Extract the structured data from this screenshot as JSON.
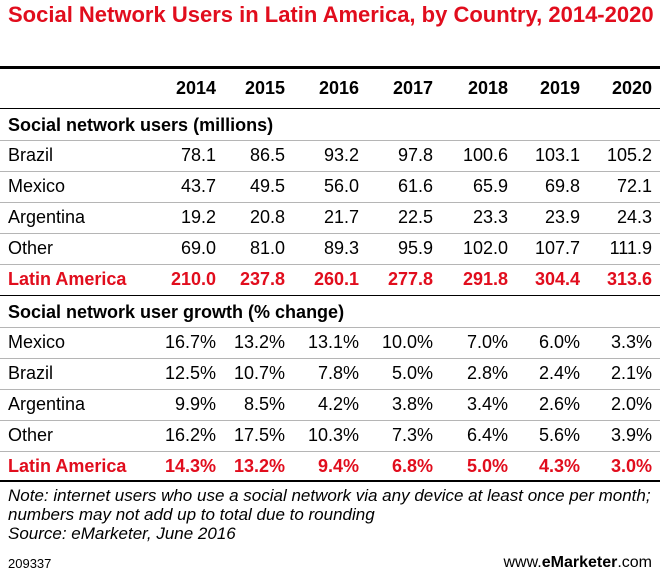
{
  "chart_data": {
    "type": "table",
    "title": "Social Network Users in Latin America, by Country, 2014-2020",
    "columns": [
      "2014",
      "2015",
      "2016",
      "2017",
      "2018",
      "2019",
      "2020"
    ],
    "sections": [
      {
        "heading": "Social network users (millions)",
        "rows": [
          {
            "label": "Brazil",
            "values": [
              "78.1",
              "86.5",
              "93.2",
              "97.8",
              "100.6",
              "103.1",
              "105.2"
            ]
          },
          {
            "label": "Mexico",
            "values": [
              "43.7",
              "49.5",
              "56.0",
              "61.6",
              "65.9",
              "69.8",
              "72.1"
            ]
          },
          {
            "label": "Argentina",
            "values": [
              "19.2",
              "20.8",
              "21.7",
              "22.5",
              "23.3",
              "23.9",
              "24.3"
            ]
          },
          {
            "label": "Other",
            "values": [
              "69.0",
              "81.0",
              "89.3",
              "95.9",
              "102.0",
              "107.7",
              "111.9"
            ]
          }
        ],
        "total": {
          "label": "Latin America",
          "values": [
            "210.0",
            "237.8",
            "260.1",
            "277.8",
            "291.8",
            "304.4",
            "313.6"
          ]
        }
      },
      {
        "heading": "Social network user growth (% change)",
        "rows": [
          {
            "label": "Mexico",
            "values": [
              "16.7%",
              "13.2%",
              "13.1%",
              "10.0%",
              "7.0%",
              "6.0%",
              "3.3%"
            ]
          },
          {
            "label": "Brazil",
            "values": [
              "12.5%",
              "10.7%",
              "7.8%",
              "5.0%",
              "2.8%",
              "2.4%",
              "2.1%"
            ]
          },
          {
            "label": "Argentina",
            "values": [
              "9.9%",
              "8.5%",
              "4.2%",
              "3.8%",
              "3.4%",
              "2.6%",
              "2.0%"
            ]
          },
          {
            "label": "Other",
            "values": [
              "16.2%",
              "17.5%",
              "10.3%",
              "7.3%",
              "6.4%",
              "5.6%",
              "3.9%"
            ]
          }
        ],
        "total": {
          "label": "Latin America",
          "values": [
            "14.3%",
            "13.2%",
            "9.4%",
            "6.8%",
            "5.0%",
            "4.3%",
            "3.0%"
          ]
        }
      }
    ],
    "note": "Note: internet users who use a social network via any device at least once per month; numbers may not add up to total due to rounding",
    "source": "Source: eMarketer, June 2016"
  },
  "footer": {
    "chart_id": "209337",
    "brand_prefix": "www.",
    "brand_name": "eMarketer",
    "brand_suffix": ".com"
  },
  "colors": {
    "accent": "#e10d1d",
    "rule": "#b5b5b5",
    "text": "#000000"
  }
}
